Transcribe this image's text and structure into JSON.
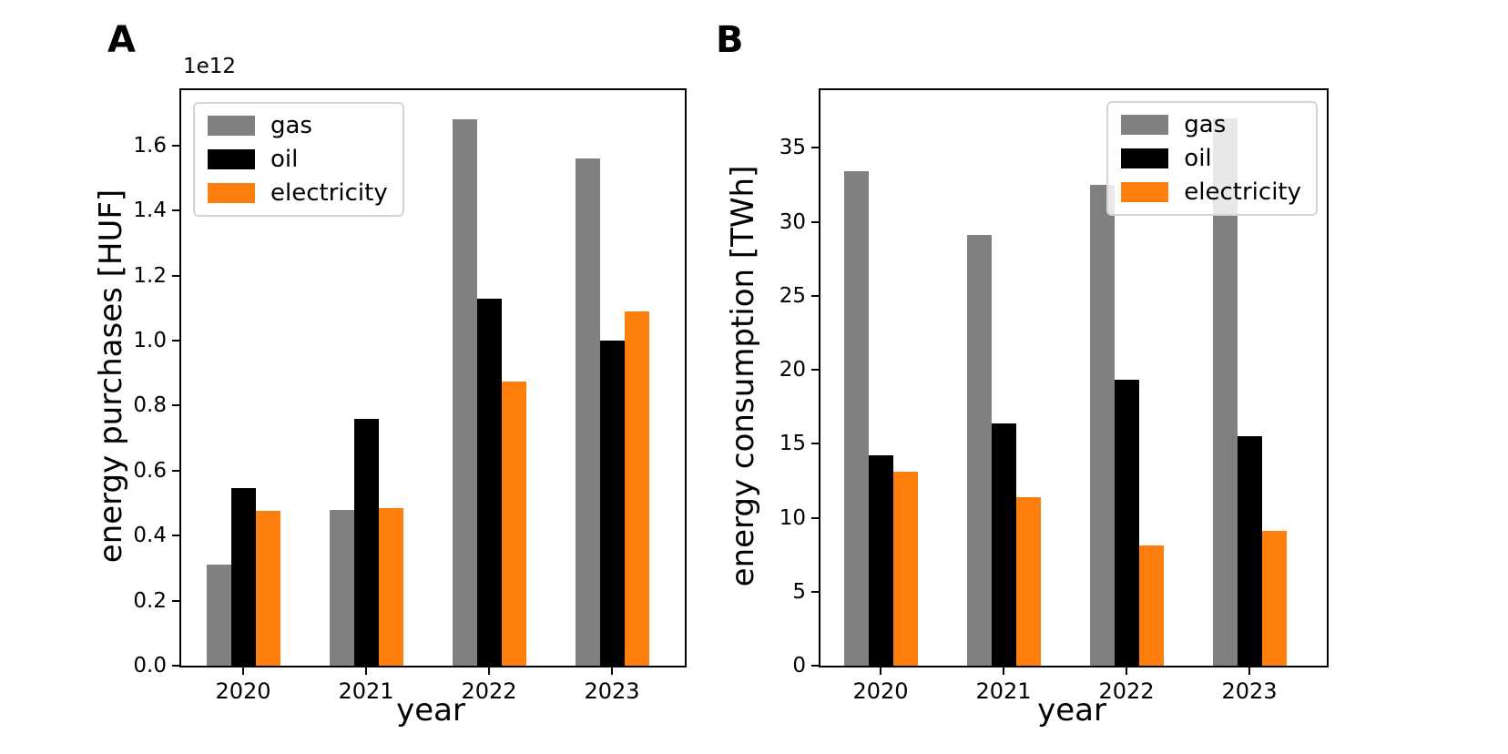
{
  "figure": {
    "background": "#ffffff",
    "panel_count": 2
  },
  "chart_data": [
    {
      "type": "bar",
      "panel_label": "A",
      "xlabel": "year",
      "ylabel": "energy purchases [HUF]",
      "offset_text": "1e12",
      "value_scale": "1e12",
      "categories": [
        "2020",
        "2021",
        "2022",
        "2023"
      ],
      "series": [
        {
          "name": "gas",
          "color": "#808080",
          "values": [
            0.31,
            0.48,
            1.68,
            1.56
          ]
        },
        {
          "name": "oil",
          "color": "#000000",
          "values": [
            0.545,
            0.76,
            1.13,
            1.0
          ]
        },
        {
          "name": "electricity",
          "color": "#ff7f0e",
          "values": [
            0.475,
            0.485,
            0.875,
            1.09
          ]
        }
      ],
      "yticks": [
        "0.0",
        "0.2",
        "0.4",
        "0.6",
        "0.8",
        "1.0",
        "1.2",
        "1.4",
        "1.6"
      ],
      "ylim": [
        0,
        1.77
      ],
      "grid": false,
      "legend_position": "top-left"
    },
    {
      "type": "bar",
      "panel_label": "B",
      "xlabel": "year",
      "ylabel": "energy consumption [TWh]",
      "categories": [
        "2020",
        "2021",
        "2022",
        "2023"
      ],
      "series": [
        {
          "name": "gas",
          "color": "#808080",
          "values": [
            33.4,
            29.1,
            32.5,
            37.0
          ]
        },
        {
          "name": "oil",
          "color": "#000000",
          "values": [
            14.2,
            16.4,
            19.3,
            15.5
          ]
        },
        {
          "name": "electricity",
          "color": "#ff7f0e",
          "values": [
            13.1,
            11.4,
            8.1,
            9.1
          ]
        }
      ],
      "yticks": [
        "0",
        "5",
        "10",
        "15",
        "20",
        "25",
        "30",
        "35"
      ],
      "ylim": [
        0,
        38.9
      ],
      "grid": false,
      "legend_position": "top-right"
    }
  ]
}
